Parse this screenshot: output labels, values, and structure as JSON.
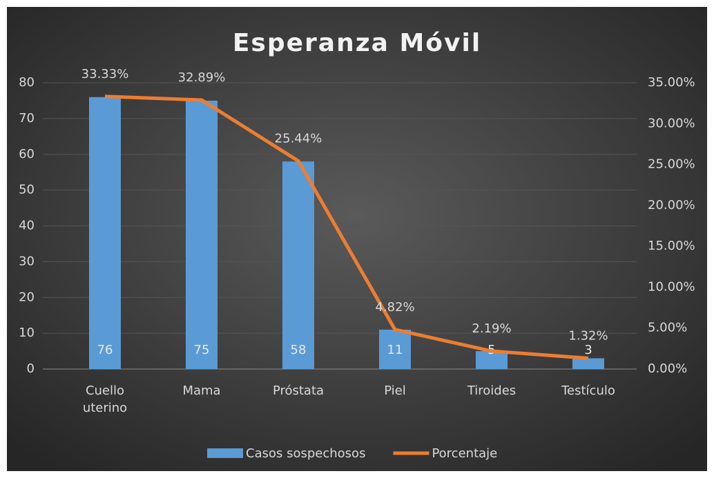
{
  "chart_data": {
    "type": "bar",
    "title": "Esperanza Móvil",
    "categories": [
      "Cuello uterino",
      "Mama",
      "Próstata",
      "Piel",
      "Tiroides",
      "Testículo"
    ],
    "series": [
      {
        "name": "Casos sospechosos",
        "type": "bar",
        "color": "#5b9bd5",
        "values": [
          76,
          75,
          58,
          11,
          5,
          3
        ]
      },
      {
        "name": "Porcentaje",
        "type": "line",
        "axis": "y2",
        "color": "#ed7d31",
        "values": [
          33.33,
          32.89,
          25.44,
          4.82,
          2.19,
          1.32
        ],
        "value_labels": [
          "33.33%",
          "32.89%",
          "25.44%",
          "4.82%",
          "2.19%",
          "1.32%"
        ]
      }
    ],
    "ylim": [
      0,
      80
    ],
    "yticks": [
      0,
      10,
      20,
      30,
      40,
      50,
      60,
      70,
      80
    ],
    "y2lim": [
      0,
      35
    ],
    "y2ticks": [
      {
        "value": 0,
        "label": "0.00%"
      },
      {
        "value": 5,
        "label": "5.00%"
      },
      {
        "value": 10,
        "label": "10.00%"
      },
      {
        "value": 15,
        "label": "15.00%"
      },
      {
        "value": 20,
        "label": "20.00%"
      },
      {
        "value": 25,
        "label": "25.00%"
      },
      {
        "value": 30,
        "label": "30.00%"
      },
      {
        "value": 35,
        "label": "35.00%"
      }
    ],
    "grid": true,
    "legend": "bottom"
  }
}
